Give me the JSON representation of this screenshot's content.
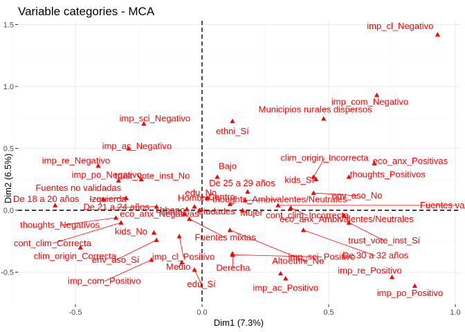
{
  "chart_data": {
    "type": "scatter",
    "title": "Variable categories - MCA",
    "xlabel": "Dim1 (7.3%)",
    "ylabel": "Dim2 (6.5%)",
    "xlim": [
      -0.6,
      1.0
    ],
    "ylim": [
      -0.7,
      1.5
    ],
    "x_ticks": [
      -0.5,
      0.0,
      0.5,
      1.0
    ],
    "x_tick_labels": [
      "-0.5",
      "0.0",
      "0.5",
      "1.0"
    ],
    "y_ticks": [
      -0.5,
      0.0,
      0.5,
      1.0,
      1.5
    ],
    "y_tick_labels": [
      "-0.5",
      "0.0",
      "0.5",
      "1.0",
      "1.5"
    ],
    "grid": true,
    "reference_lines": {
      "x": 0,
      "y": 0
    },
    "point_color": "#ff0000",
    "marker": "triangle",
    "points": [
      {
        "label": "imp_cl_Negativo",
        "x": 0.93,
        "y": 1.42
      },
      {
        "label": "imp_com_Negativo",
        "x": 0.69,
        "y": 0.93
      },
      {
        "label": "Municipios rurales dispersos",
        "x": 0.48,
        "y": 0.74
      },
      {
        "label": "ethni_Sí",
        "x": 0.12,
        "y": 0.72
      },
      {
        "label": "imp_sci_Negativo",
        "x": -0.23,
        "y": 0.7
      },
      {
        "label": "imp_ac_Negativo",
        "x": -0.29,
        "y": 0.5
      },
      {
        "label": "imp_re_Negativo",
        "x": -0.41,
        "y": 0.36
      },
      {
        "label": "eco_anx_Positivas",
        "x": 0.68,
        "y": 0.38
      },
      {
        "label": "clim_origin_Incorrecta",
        "x": 0.44,
        "y": 0.27
      },
      {
        "label": "Bajo",
        "x": 0.06,
        "y": 0.27
      },
      {
        "label": "trust_vote_inst_No",
        "x": -0.24,
        "y": 0.25
      },
      {
        "label": "imp_po_Negativo",
        "x": -0.33,
        "y": 0.24
      },
      {
        "label": "thoughts_Positivos",
        "x": 0.58,
        "y": 0.27
      },
      {
        "label": "kids_Sí",
        "x": 0.45,
        "y": 0.25
      },
      {
        "label": "De 25 a 29 años",
        "x": 0.18,
        "y": 0.15
      },
      {
        "label": "edu_No",
        "x": 0.02,
        "y": 0.1
      },
      {
        "label": "Izquierda",
        "x": -0.3,
        "y": 0.1
      },
      {
        "label": "env_aso_No",
        "x": 0.44,
        "y": 0.14
      },
      {
        "label": "Fuentes no validadas",
        "x": -0.39,
        "y": 0.09
      },
      {
        "label": "thoughts_Ambivalentes/Neutrales",
        "x": 0.17,
        "y": 0.08
      },
      {
        "label": "Centro",
        "x": 0.11,
        "y": 0.05
      },
      {
        "label": "Fuentes validadas",
        "x": 0.3,
        "y": 0.04
      },
      {
        "label": "De 18 a 20 años",
        "x": -0.58,
        "y": 0.04
      },
      {
        "label": "Hombre",
        "x": -0.03,
        "y": 0.03
      },
      {
        "label": "Urbano",
        "x": -0.06,
        "y": 0.01
      },
      {
        "label": "Ciudades",
        "x": -0.01,
        "y": 0.0
      },
      {
        "label": "De 21 a 24 años",
        "x": -0.18,
        "y": 0.03
      },
      {
        "label": "cont_clim_Incorrecta",
        "x": 0.35,
        "y": 0.02
      },
      {
        "label": "Mujer",
        "x": 0.16,
        "y": 0.0
      },
      {
        "label": "eco_anx_Negativas",
        "x": -0.07,
        "y": -0.03
      },
      {
        "label": "thoughts_Negativos",
        "x": -0.34,
        "y": -0.06
      },
      {
        "label": "eco_anx_Ambivalentes/Neutrales",
        "x": 0.56,
        "y": -0.04
      },
      {
        "label": "trust_vote_inst_Sí",
        "x": 0.58,
        "y": -0.1
      },
      {
        "label": "cont_clim_Correcta",
        "x": -0.32,
        "y": -0.1
      },
      {
        "label": "Fuentes mixtas",
        "x": -0.05,
        "y": -0.07
      },
      {
        "label": "kids_No",
        "x": -0.19,
        "y": -0.18
      },
      {
        "label": "De 30 a 32 años",
        "x": 0.4,
        "y": -0.16
      },
      {
        "label": "ethni_No",
        "x": 0.11,
        "y": -0.16
      },
      {
        "label": "imp_cl_Positivo",
        "x": -0.09,
        "y": -0.21
      },
      {
        "label": "env_aso_Sí",
        "x": -0.18,
        "y": -0.24
      },
      {
        "label": "clim_origin_Correcta",
        "x": -0.48,
        "y": -0.3
      },
      {
        "label": "Derecha",
        "x": 0.12,
        "y": -0.35
      },
      {
        "label": "imp_sci_Positivo",
        "x": 0.12,
        "y": -0.36
      },
      {
        "label": "Medio",
        "x": -0.08,
        "y": -0.42
      },
      {
        "label": "imp_com_Positivo",
        "x": -0.2,
        "y": -0.4
      },
      {
        "label": "Alto",
        "x": 0.31,
        "y": -0.51
      },
      {
        "label": "edu_Sí",
        "x": -0.03,
        "y": -0.48
      },
      {
        "label": "imp_ac_Positivo",
        "x": 0.33,
        "y": -0.55
      },
      {
        "label": "imp_re_Positivo",
        "x": 0.75,
        "y": -0.54
      },
      {
        "label": "imp_po_Positivo",
        "x": 0.84,
        "y": -0.61
      }
    ]
  }
}
